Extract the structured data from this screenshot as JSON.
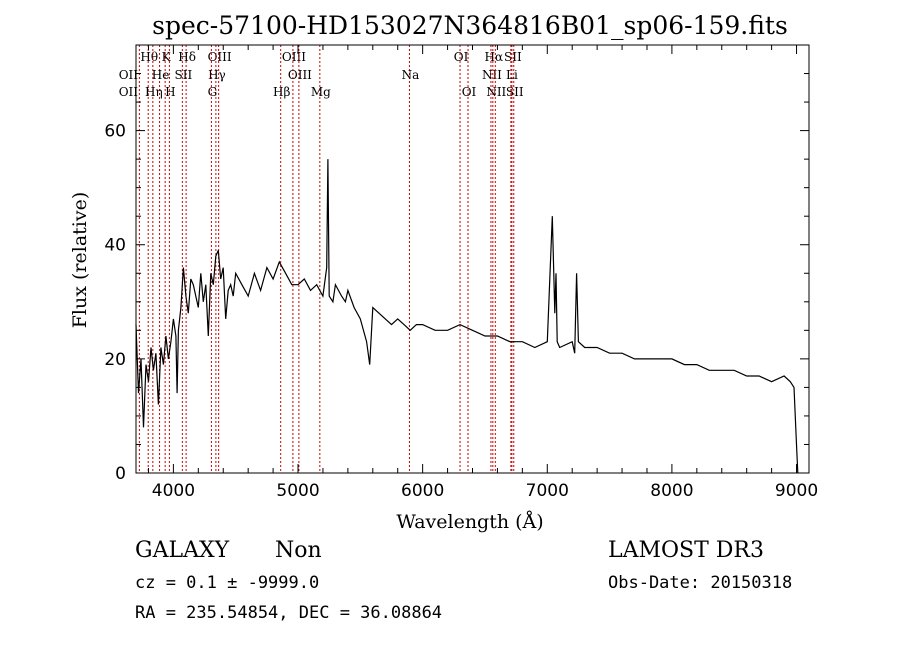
{
  "chart_data": {
    "type": "line",
    "title": "spec-57100-HD153027N364816B01_sp06-159.fits",
    "xlabel": "Wavelength (Å)",
    "ylabel": "Flux (relative)",
    "xlim": [
      3700,
      9100
    ],
    "ylim": [
      0,
      75
    ],
    "xticks": [
      4000,
      5000,
      6000,
      7000,
      8000,
      9000
    ],
    "yticks": [
      0,
      20,
      40,
      60
    ],
    "series": [
      {
        "name": "spectrum",
        "x": [
          3700,
          3720,
          3740,
          3760,
          3780,
          3800,
          3820,
          3840,
          3860,
          3880,
          3900,
          3920,
          3940,
          3960,
          3980,
          4000,
          4020,
          4030,
          4040,
          4060,
          4080,
          4100,
          4120,
          4140,
          4160,
          4180,
          4200,
          4220,
          4240,
          4260,
          4280,
          4300,
          4320,
          4340,
          4360,
          4380,
          4400,
          4420,
          4440,
          4460,
          4480,
          4500,
          4550,
          4600,
          4650,
          4700,
          4750,
          4800,
          4850,
          4900,
          4950,
          5000,
          5050,
          5100,
          5150,
          5200,
          5230,
          5240,
          5250,
          5280,
          5300,
          5350,
          5380,
          5400,
          5450,
          5500,
          5550,
          5575,
          5600,
          5650,
          5700,
          5750,
          5800,
          5850,
          5900,
          5950,
          6000,
          6100,
          6200,
          6300,
          6400,
          6500,
          6600,
          6700,
          6800,
          6900,
          7000,
          7040,
          7060,
          7070,
          7080,
          7100,
          7200,
          7220,
          7235,
          7250,
          7300,
          7400,
          7500,
          7600,
          7700,
          7800,
          7900,
          8000,
          8100,
          8200,
          8300,
          8400,
          8500,
          8600,
          8700,
          8800,
          8900,
          8950,
          8980,
          9000,
          9010
        ],
        "values": [
          26,
          14,
          20,
          8,
          19,
          16,
          22,
          18,
          21,
          12,
          22,
          19,
          24,
          20,
          23,
          27,
          24,
          14,
          25,
          29,
          36,
          31,
          28,
          34,
          33,
          31,
          29,
          35,
          30,
          33,
          24,
          35,
          33,
          38,
          39,
          34,
          36,
          27,
          32,
          33,
          31,
          35,
          33,
          31,
          35,
          32,
          36,
          34,
          37,
          35,
          33,
          33,
          34,
          32,
          33,
          31,
          36,
          55,
          31,
          30,
          33,
          31,
          30,
          32,
          29,
          27,
          23,
          19,
          29,
          28,
          27,
          26,
          27,
          26,
          25,
          26,
          26,
          25,
          25,
          26,
          25,
          24,
          24,
          23,
          23,
          22,
          23,
          45,
          28,
          35,
          23,
          22,
          23,
          21,
          35,
          23,
          22,
          22,
          21,
          21,
          20,
          20,
          20,
          20,
          19,
          19,
          18,
          18,
          18,
          17,
          17,
          16,
          17,
          16,
          15,
          5,
          0
        ]
      }
    ],
    "lines": [
      {
        "name": "OII",
        "wavelength": 3727,
        "row": 1,
        "label_offset": -12
      },
      {
        "name": "OII",
        "wavelength": 3727,
        "row": 2,
        "label_offset": -12
      },
      {
        "name": "Hθ",
        "wavelength": 3798,
        "row": 0,
        "label_offset": 0
      },
      {
        "name": "K",
        "wavelength": 3934,
        "row": 0,
        "label_offset": 0
      },
      {
        "name": "He",
        "wavelength": 3889,
        "row": 1,
        "label_offset": 0
      },
      {
        "name": "Hη",
        "wavelength": 3835,
        "row": 2,
        "label_offset": 0
      },
      {
        "name": "H",
        "wavelength": 3968,
        "row": 2,
        "label_offset": 0
      },
      {
        "name": "Hδ",
        "wavelength": 4102,
        "row": 0,
        "label_offset": 0
      },
      {
        "name": "SII",
        "wavelength": 4072,
        "row": 1,
        "label_offset": 0
      },
      {
        "name": "OIII",
        "wavelength": 4363,
        "row": 0,
        "label_offset": 0
      },
      {
        "name": "Hγ",
        "wavelength": 4341,
        "row": 1,
        "label_offset": 0
      },
      {
        "name": "G",
        "wavelength": 4305,
        "row": 2,
        "label_offset": 0
      },
      {
        "name": "Hβ",
        "wavelength": 4861,
        "row": 2,
        "label_offset": 0
      },
      {
        "name": "OIII",
        "wavelength": 4959,
        "row": 0,
        "label_offset": 0
      },
      {
        "name": "OIII",
        "wavelength": 5007,
        "row": 1,
        "label_offset": 0
      },
      {
        "name": "Mg",
        "wavelength": 5175,
        "row": 2,
        "label_offset": 0
      },
      {
        "name": "Na",
        "wavelength": 5894,
        "row": 1,
        "label_offset": 0
      },
      {
        "name": "OI",
        "wavelength": 6300,
        "row": 0,
        "label_offset": 0
      },
      {
        "name": "OI",
        "wavelength": 6364,
        "row": 2,
        "label_offset": 0
      },
      {
        "name": "Hα",
        "wavelength": 6563,
        "row": 0,
        "label_offset": 0
      },
      {
        "name": "NII",
        "wavelength": 6548,
        "row": 1,
        "label_offset": 0
      },
      {
        "name": "NII",
        "wavelength": 6583,
        "row": 2,
        "label_offset": 0
      },
      {
        "name": "SII",
        "wavelength": 6716,
        "row": 0,
        "label_offset": 0
      },
      {
        "name": "Li",
        "wavelength": 6708,
        "row": 1,
        "label_offset": 0
      },
      {
        "name": "SII",
        "wavelength": 6731,
        "row": 2,
        "label_offset": 0
      }
    ]
  },
  "info": {
    "class_label": "GALAXY",
    "subclass": "Non",
    "survey": "LAMOST DR3",
    "cz_text": "cz = 0.1 ± -9999.0",
    "obs_date": "Obs-Date: 20150318",
    "coords_text": "RA = 235.54854, DEC =  36.08864"
  },
  "colors": {
    "line_marker": "#cc0000",
    "spectrum": "#000000"
  }
}
